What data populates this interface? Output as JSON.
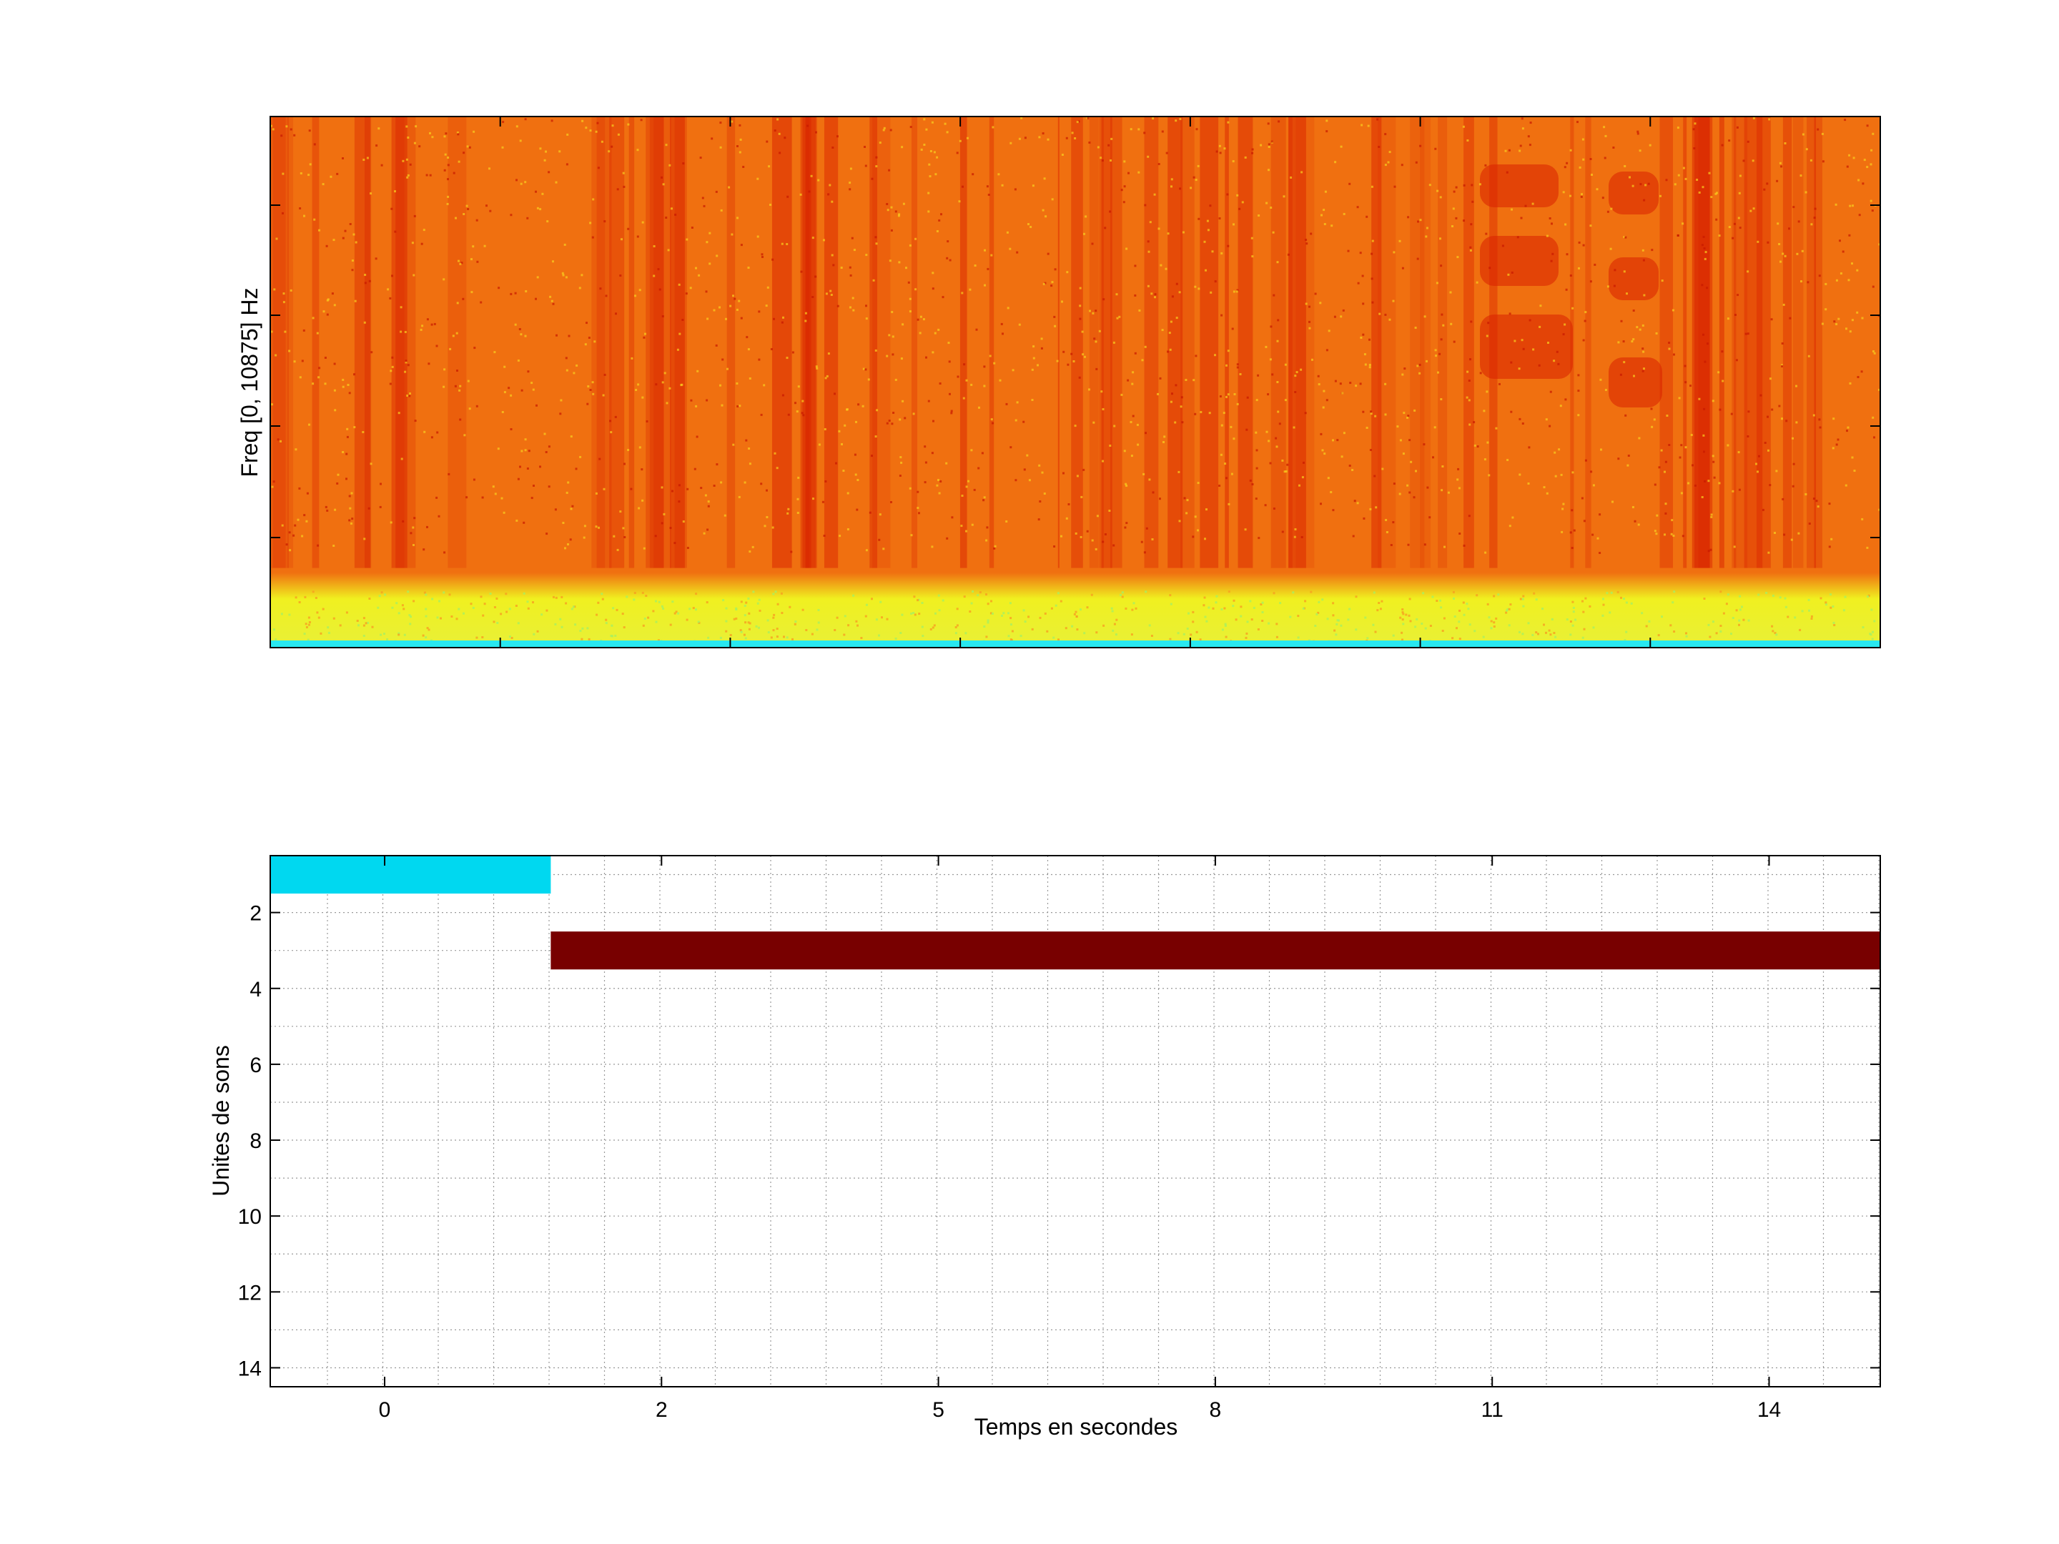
{
  "chart_data": [
    {
      "type": "heatmap",
      "ylabel": "Freq [0, 10875] Hz",
      "xlabel": "",
      "colormap": "jet",
      "colors": {
        "background": "#f07010",
        "dark": "#d82000",
        "low_band": "#f0f020",
        "base": "#28e8f0"
      }
    },
    {
      "type": "bar",
      "orientation": "horizontal-segments",
      "xlabel": "Temps en secondes",
      "ylabel": "Unites de sons",
      "xticks": [
        "0",
        "2",
        "5",
        "8",
        "11",
        "14"
      ],
      "yticks": [
        "2",
        "4",
        "6",
        "8",
        "10",
        "12",
        "14"
      ],
      "ylim": [
        0.5,
        14.5
      ],
      "grid": true,
      "series": [
        {
          "unit": 1,
          "start": -1.2,
          "end": 1.2,
          "color": "#00d8f0"
        },
        {
          "unit": 3,
          "start": 1.2,
          "end": 15.7,
          "color": "#780000"
        }
      ]
    }
  ]
}
